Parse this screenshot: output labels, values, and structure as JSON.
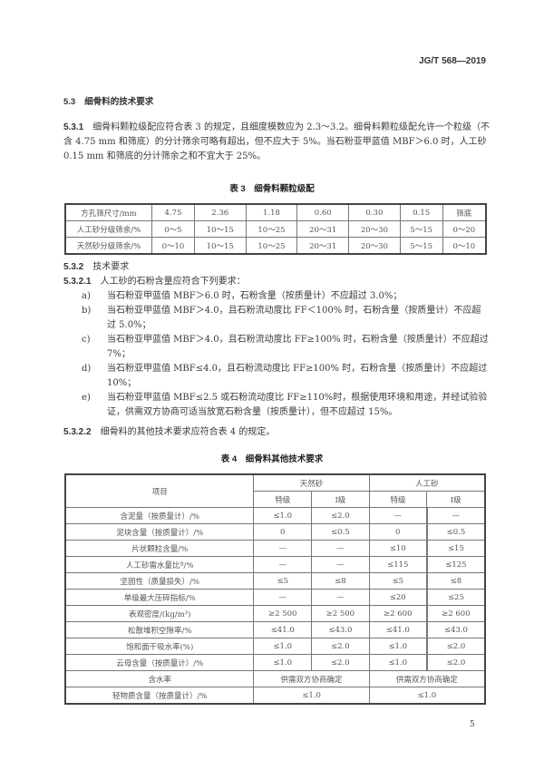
{
  "header": {
    "code": "JG/T 568—2019"
  },
  "s53": {
    "num": "5.3",
    "title": "细骨料的技术要求"
  },
  "s531": {
    "num": "5.3.1",
    "text": "细骨料颗粒级配应符合表 3 的规定，且细度模数应为 2.3～3.2。细骨料颗粒级配允许一个粒级（不含 4.75 mm 和筛底）的分计筛余可略有超出，但不应大于 5%。当石粉亚甲蓝值 MBF＞6.0 时，人工砂 0.15 mm 和筛底的分计筛余之和不宜大于 25%。"
  },
  "table3": {
    "caption": "表 3　细骨料颗粒级配",
    "rows": [
      [
        "方孔筛尺寸/mm",
        "4.75",
        "2.36",
        "1.18",
        "0.60",
        "0.30",
        "0.15",
        "筛底"
      ],
      [
        "人工砂分级筛余/%",
        "0～5",
        "10～15",
        "10～25",
        "20～31",
        "20～30",
        "5～15",
        "0～20"
      ],
      [
        "天然砂分级筛余/%",
        "0～10",
        "10～15",
        "10～25",
        "20～31",
        "20～30",
        "5～15",
        "0～10"
      ]
    ]
  },
  "s532": {
    "num": "5.3.2",
    "title": "技术要求"
  },
  "s5321": {
    "num": "5.3.2.1",
    "text": "人工砂的石粉含量应符合下列要求："
  },
  "items": [
    {
      "m": "a)",
      "t": "当石粉亚甲蓝值 MBF＞6.0 时，石粉含量（按质量计）不应超过 3.0%；"
    },
    {
      "m": "b)",
      "t": "当石粉亚甲蓝值 MBF＞4.0，且石粉流动度比 FF＜100% 时，石粉含量（按质量计）不应超过 5.0%；"
    },
    {
      "m": "c)",
      "t": "当石粉亚甲蓝值 MBF＞4.0，且石粉流动度比 FF≥100% 时，石粉含量（按质量计）不应超过 7%；"
    },
    {
      "m": "d)",
      "t": "当石粉亚甲蓝值 MBF≤4.0，且石粉流动度比 FF≥100% 时，石粉含量（按质量计）不应超过 10%；"
    },
    {
      "m": "e)",
      "t": "当石粉亚甲蓝值 MBF≤2.5 或石粉流动度比 FF≥110%时，根据使用环境和用途，并经试验验证，供需双方协商可适当放宽石粉含量（按质量计），但不应超过 15%。"
    }
  ],
  "s5322": {
    "num": "5.3.2.2",
    "text": "细骨料的其他技术要求应符合表 4 的规定。"
  },
  "table4": {
    "caption": "表 4　细骨料其他技术要求",
    "head": {
      "item": "项目",
      "natural": "天然砂",
      "artificial": "人工砂",
      "grades": [
        "特级",
        "Ⅰ级",
        "特级",
        "Ⅰ级"
      ]
    },
    "rows": [
      [
        "含泥量（按质量计）/%",
        "≤1.0",
        "≤2.0",
        "—",
        "—"
      ],
      [
        "泥块含量（按质量计）/%",
        "0",
        "≤0.5",
        "0",
        "≤0.5"
      ],
      [
        "片状颗粒含量/%",
        "—",
        "—",
        "≤10",
        "≤15"
      ],
      [
        "人工砂需水量比ª/%",
        "—",
        "—",
        "≤115",
        "≤125"
      ],
      [
        "坚固性（质量损失）/%",
        "≤5",
        "≤8",
        "≤5",
        "≤8"
      ],
      [
        "单级最大压碎指标/%",
        "—",
        "—",
        "≤20",
        "≤25"
      ],
      [
        "表观密度/(kg/m³)",
        "≥2 500",
        "≥2 500",
        "≥2 600",
        "≥2 600"
      ],
      [
        "松散堆积空隙率/%",
        "≤41.0",
        "≤43.0",
        "≤41.0",
        "≤43.0"
      ],
      [
        "饱和面干吸水率(%)",
        "≤1.0",
        "≤2.0",
        "≤1.0",
        "≤2.0"
      ],
      [
        "云母含量（按质量计）/%",
        "≤1.0",
        "≤2.0",
        "≤1.0",
        "≤2.0"
      ]
    ],
    "merged": [
      [
        "含水率",
        "供需双方协商确定",
        "供需双方协商确定"
      ],
      [
        "轻物质含量（按质量计）/%",
        "≤1.0",
        "≤1.0"
      ]
    ]
  },
  "page_number": "5"
}
